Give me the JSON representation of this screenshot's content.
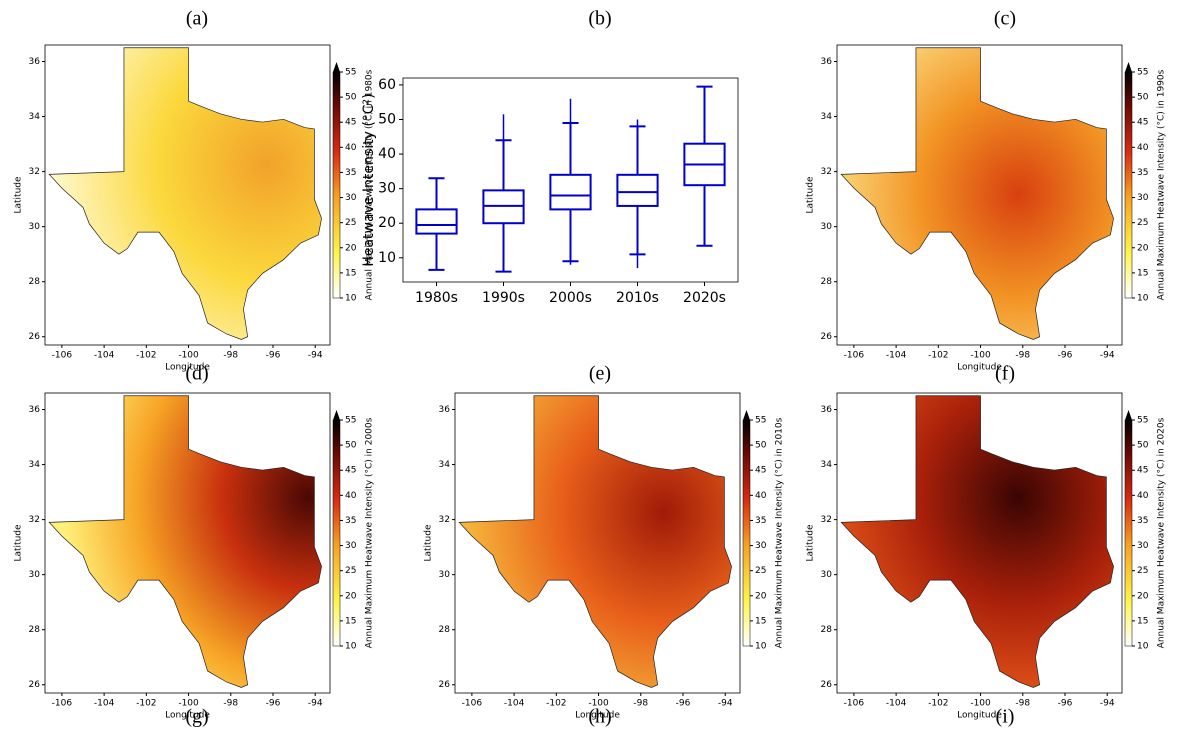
{
  "panel_labels": [
    "(a)",
    "(b)",
    "(c)",
    "(d)",
    "(e)",
    "(f)",
    "(g)",
    "(h)",
    "(i)"
  ],
  "map_axes": {
    "xlabel": "Longitude",
    "ylabel": "Latitude",
    "xlim": [
      -106.8,
      -93.3
    ],
    "xticks": [
      -106,
      -104,
      -102,
      -100,
      -98,
      -96,
      -94
    ],
    "ylim": [
      25.7,
      36.6
    ],
    "yticks": [
      26,
      28,
      30,
      32,
      34,
      36
    ],
    "clim": [
      10,
      55
    ],
    "cticks": [
      10,
      15,
      20,
      25,
      30,
      35,
      40,
      45,
      50,
      55
    ]
  },
  "maps": [
    {
      "colorbar_label": "Annual Maximum Heatwave Intensity (°C) in 1980s"
    },
    {
      "colorbar_label": "Annual Maximum Heatwave Intensity (°C) in 1990s"
    },
    {
      "colorbar_label": "Annual Maximum Heatwave Intensity (°C) in 2000s"
    },
    {
      "colorbar_label": "Annual Maximum Heatwave Intensity (°C) in 2010s"
    },
    {
      "colorbar_label": "Annual Maximum Heatwave Intensity (°C) in 2020s"
    }
  ],
  "chart_data": {
    "type": "box",
    "ylabel": "Heatwave Intensity (°C²)",
    "color": "#0000cc",
    "categories": [
      "1980s",
      "1990s",
      "2000s",
      "2010s",
      "2020s"
    ],
    "min": [
      6.5,
      6,
      8,
      7,
      13.5
    ],
    "whisker_low": [
      6.5,
      6,
      9,
      11,
      13.5
    ],
    "q1": [
      17,
      20,
      24,
      25,
      31
    ],
    "median": [
      19.5,
      25,
      28,
      29,
      37
    ],
    "q3": [
      24,
      29.5,
      34,
      34,
      43
    ],
    "whisker_high": [
      33,
      44,
      49,
      48,
      59.5
    ],
    "max": [
      33,
      51.5,
      56,
      50,
      59.5
    ],
    "ylim": [
      3,
      62
    ],
    "yticks": [
      10,
      20,
      30,
      40,
      50,
      60
    ]
  }
}
